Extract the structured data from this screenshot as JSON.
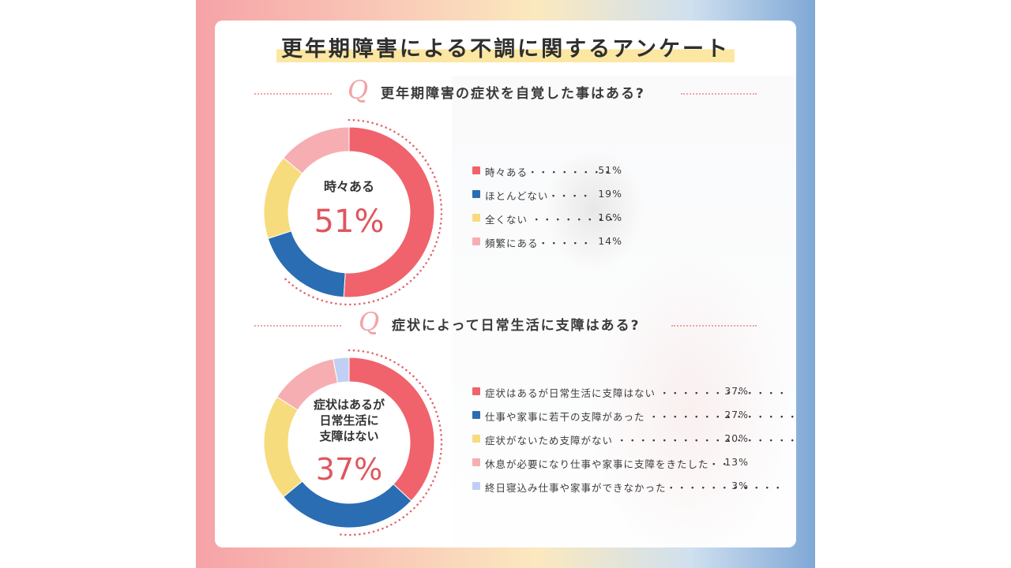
{
  "title": "更年期障害による不調に関するアンケート",
  "q_mark": "Q",
  "chart_data": [
    {
      "type": "pie",
      "title": "更年期障害の症状を自覚した事はある?",
      "center_label": [
        "時々ある"
      ],
      "center_value": "51%",
      "series": [
        {
          "label": "時々ある",
          "leader": "・・・・・・・・",
          "value": 51,
          "display": "51%",
          "color": "#f0636c"
        },
        {
          "label": "ほとんどない",
          "leader": "・・・・",
          "value": 19,
          "display": "19%",
          "color": "#2a6db3"
        },
        {
          "label": "全くない",
          "leader": " ・・・・・・・・",
          "value": 16,
          "display": "16%",
          "color": "#f7dc7d"
        },
        {
          "label": "頻繁にある",
          "leader": "・・・・・",
          "value": 14,
          "display": "14%",
          "color": "#f6aeb3"
        }
      ]
    },
    {
      "type": "pie",
      "title": "症状によって日常生活に支障はある?",
      "center_label": [
        "症状はあるが",
        "日常生活に",
        "支障はない"
      ],
      "center_value": "37%",
      "series": [
        {
          "label": "症状はあるが日常生活に支障はない",
          "leader": " ・・・・・・・・・・・・",
          "value": 37,
          "display": "37%",
          "color": "#f0636c"
        },
        {
          "label": "仕事や家事に若干の支障があった",
          "leader": " ・・・・・・・・・・・・・・",
          "value": 27,
          "display": "27%",
          "color": "#2a6db3"
        },
        {
          "label": "症状がないため支障がない",
          "leader": " ・・・・・・・・・・・・・・・・・・・・",
          "value": 20,
          "display": "20%",
          "color": "#f7dc7d"
        },
        {
          "label": "休息が必要になり仕事や家事に支障をきたした",
          "leader": "・・",
          "value": 13,
          "display": "13%",
          "color": "#f6aeb3"
        },
        {
          "label": "終日寝込み仕事や家事ができなかった",
          "leader": "・・・・・・・・・・・",
          "value": 3,
          "display": "3%",
          "color": "#c2cff4"
        }
      ]
    }
  ]
}
